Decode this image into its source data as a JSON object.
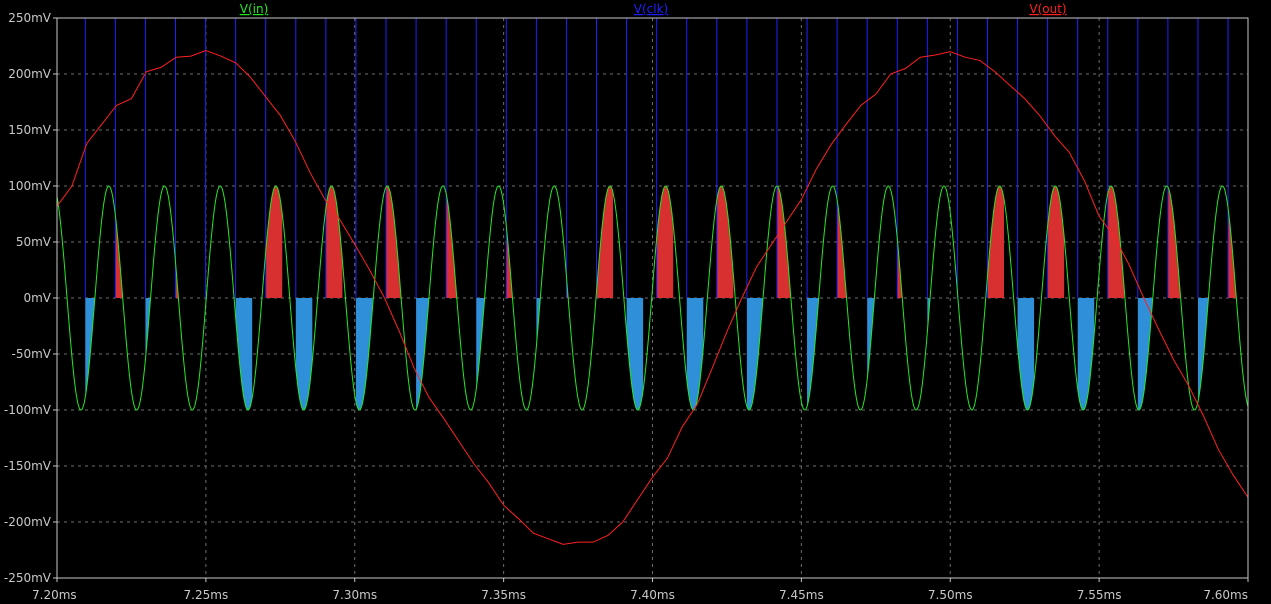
{
  "chart_data": {
    "type": "line",
    "title": "",
    "xlabel": "",
    "ylabel": "",
    "x_unit": "ms",
    "y_unit": "mV",
    "xlim": [
      7.2,
      7.6
    ],
    "ylim": [
      -250,
      250
    ],
    "grid": true,
    "legend_placement": "top",
    "x_ticks": [
      "7.20ms",
      "7.25ms",
      "7.30ms",
      "7.35ms",
      "7.40ms",
      "7.45ms",
      "7.50ms",
      "7.55ms",
      "7.60ms"
    ],
    "y_ticks": [
      "250mV",
      "200mV",
      "150mV",
      "100mV",
      "50mV",
      "0mV",
      "-50mV",
      "-100mV",
      "-150mV",
      "-200mV",
      "-250mV"
    ],
    "series": [
      {
        "name": "V(in)",
        "color": "#22e822",
        "description_values": {
          "shape": "sine",
          "amplitude_mV": 100,
          "period_ms": 0.0187,
          "peak_times_ms": [
            7.2174,
            7.2361,
            7.2548,
            7.2735,
            7.2922,
            7.3109,
            7.3296,
            7.3483,
            7.367,
            7.3857,
            7.4044,
            7.4231,
            7.4418,
            7.4605,
            7.4792,
            7.4979,
            7.5166,
            7.5353,
            7.554,
            7.5727,
            7.5914
          ]
        }
      },
      {
        "name": "V(clk)",
        "color": "#2020ff",
        "description_values": {
          "shape": "pulse train",
          "high_mV": 250,
          "low_mV": 0,
          "period_ms": 0.0101,
          "first_edge_ms": 7.2095
        }
      },
      {
        "name": "V(out)",
        "color": "#ff2020",
        "x": [
          7.2,
          7.205,
          7.21,
          7.215,
          7.22,
          7.225,
          7.23,
          7.235,
          7.24,
          7.245,
          7.25,
          7.255,
          7.26,
          7.265,
          7.27,
          7.275,
          7.28,
          7.285,
          7.29,
          7.295,
          7.3,
          7.305,
          7.31,
          7.315,
          7.32,
          7.325,
          7.33,
          7.335,
          7.34,
          7.345,
          7.35,
          7.355,
          7.36,
          7.365,
          7.37,
          7.375,
          7.38,
          7.385,
          7.39,
          7.395,
          7.4,
          7.405,
          7.41,
          7.415,
          7.42,
          7.425,
          7.43,
          7.435,
          7.44,
          7.445,
          7.45,
          7.455,
          7.46,
          7.465,
          7.47,
          7.475,
          7.48,
          7.485,
          7.49,
          7.495,
          7.5,
          7.505,
          7.51,
          7.515,
          7.52,
          7.525,
          7.53,
          7.535,
          7.54,
          7.545,
          7.55,
          7.555,
          7.56,
          7.565,
          7.57,
          7.575,
          7.58,
          7.585,
          7.59,
          7.595,
          7.6
        ],
        "values": [
          82,
          100,
          138,
          155,
          172,
          178,
          202,
          206,
          215,
          216,
          221,
          216,
          210,
          197,
          180,
          163,
          140,
          112,
          88,
          70,
          48,
          25,
          0,
          -30,
          -63,
          -89,
          -108,
          -128,
          -148,
          -165,
          -185,
          -197,
          -210,
          -215,
          -220,
          -218,
          -218,
          -212,
          -200,
          -180,
          -160,
          -143,
          -115,
          -95,
          -63,
          -30,
          0,
          28,
          48,
          68,
          88,
          115,
          137,
          155,
          172,
          182,
          200,
          205,
          215,
          217,
          220,
          215,
          212,
          202,
          190,
          178,
          163,
          145,
          130,
          105,
          73,
          55,
          30,
          0,
          -28,
          -55,
          -78,
          -105,
          -135,
          -158,
          -178
        ]
      }
    ],
    "sample_and_hold": {
      "positive_fill_color": "#d83030",
      "negative_fill_color": "#2f8fd8"
    }
  }
}
